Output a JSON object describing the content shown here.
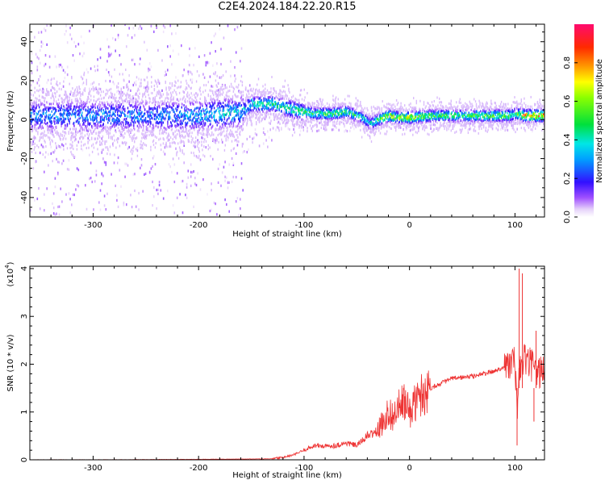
{
  "page": {
    "title": "C2E4.2024.184.22.20.R15"
  },
  "chart_data": [
    {
      "type": "heatmap",
      "xlabel": "Height of straight line (km)",
      "ylabel": "Frequency (Hz)",
      "xlim": [
        -360,
        128
      ],
      "ylim": [
        -50,
        49
      ],
      "xticks": [
        -300,
        -200,
        -100,
        0,
        100
      ],
      "xtick_labels": [
        "-300",
        "-200",
        "-100",
        "0",
        "100"
      ],
      "yticks": [
        -40,
        -20,
        0,
        20,
        40
      ],
      "ytick_labels": [
        "-40",
        "-20",
        "0",
        "20",
        "40"
      ],
      "grid": false,
      "colorbar": {
        "label": "Normalized spectral amplitude",
        "range": [
          0.0,
          1.0
        ],
        "ticks": [
          0.0,
          0.2,
          0.4,
          0.6,
          0.8
        ],
        "tick_labels": [
          "0.0",
          "0.2",
          "0.4",
          "0.6",
          "0.8"
        ],
        "colormap": "rainbow (white-violet-blue-cyan-green-yellow-orange-red-magenta)"
      },
      "ridge": {
        "x": [
          -360,
          -300,
          -250,
          -200,
          -160,
          -150,
          -130,
          -110,
          -90,
          -75,
          -60,
          -45,
          -38,
          -30,
          -20,
          -10,
          0,
          20,
          50,
          80,
          95,
          100,
          110,
          128
        ],
        "y": [
          2,
          2,
          2,
          2,
          4,
          8,
          8,
          5,
          3,
          3,
          4,
          1,
          -2,
          0,
          2,
          1,
          1,
          2,
          2,
          2,
          2,
          3,
          2,
          2
        ],
        "amplitude": [
          0.3,
          0.32,
          0.3,
          0.35,
          0.4,
          0.45,
          0.45,
          0.5,
          0.55,
          0.55,
          0.55,
          0.45,
          0.4,
          0.55,
          0.75,
          0.65,
          0.7,
          0.6,
          0.55,
          0.6,
          0.6,
          0.5,
          0.85,
          0.85
        ]
      }
    },
    {
      "type": "line",
      "xlabel": "Height of straight line (km)",
      "ylabel": "SNR (10 * v/v)",
      "y_multiplier_label": "(x10",
      "y_multiplier_exponent": "4",
      "y_multiplier_close": ")",
      "xlim": [
        -360,
        128
      ],
      "ylim": [
        0,
        4.05
      ],
      "xticks": [
        -300,
        -200,
        -100,
        0,
        100
      ],
      "xtick_labels": [
        "-300",
        "-200",
        "-100",
        "0",
        "100"
      ],
      "yticks": [
        0,
        1,
        2,
        3,
        4
      ],
      "ytick_labels": [
        "0",
        "1",
        "2",
        "3",
        "4"
      ],
      "grid": false,
      "color": "#ee3333",
      "series": [
        {
          "x": [
            -360,
            -300,
            -200,
            -130,
            -120,
            -110,
            -100,
            -90,
            -80,
            -70,
            -60,
            -50,
            -40,
            -30,
            -25,
            -20,
            -15,
            -10,
            -5,
            0,
            10,
            20,
            30,
            40,
            50,
            60,
            70,
            80,
            85,
            90,
            95,
            100,
            102,
            105,
            110,
            115,
            120,
            128
          ],
          "y": [
            0.0,
            0.0,
            0.01,
            0.02,
            0.05,
            0.1,
            0.2,
            0.3,
            0.28,
            0.3,
            0.35,
            0.3,
            0.5,
            0.6,
            0.8,
            1.0,
            0.9,
            1.1,
            1.2,
            1.0,
            1.35,
            1.5,
            1.6,
            1.7,
            1.72,
            1.75,
            1.8,
            1.85,
            1.9,
            1.95,
            2.0,
            2.05,
            1.0,
            2.0,
            2.1,
            2.0,
            1.8,
            1.9
          ]
        }
      ],
      "spikes": [
        {
          "x": 104,
          "y": 4.0
        },
        {
          "x": 107,
          "y": 3.9
        },
        {
          "x": 102,
          "y": 0.3
        },
        {
          "x": 120,
          "y": 2.7
        },
        {
          "x": 118,
          "y": 0.8
        }
      ]
    }
  ]
}
